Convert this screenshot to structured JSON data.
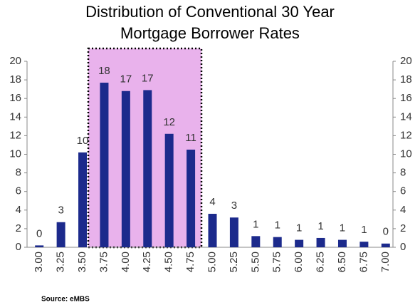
{
  "chart_data": {
    "type": "bar",
    "title": "Distribution of Conventional 30 Year Mortgage Borrower Rates",
    "source": "Source: eMBS",
    "categories": [
      "3.00",
      "3.25",
      "3.50",
      "3.75",
      "4.00",
      "4.25",
      "4.50",
      "4.75",
      "5.00",
      "5.25",
      "5.50",
      "5.75",
      "6.00",
      "6.25",
      "6.50",
      "6.75",
      "7.00"
    ],
    "values": [
      0.2,
      2.7,
      10.2,
      17.7,
      16.8,
      16.9,
      12.2,
      10.5,
      3.6,
      3.2,
      1.2,
      1.1,
      0.8,
      1.0,
      0.8,
      0.6,
      0.4
    ],
    "value_labels": [
      "0",
      "3",
      "10",
      "18",
      "17",
      "17",
      "12",
      "11",
      "4",
      "3",
      "1",
      "1",
      "1",
      "1",
      "1",
      "1",
      "0"
    ],
    "color": "#1c2a8c",
    "ylim": [
      0,
      20
    ],
    "yticks": [
      0,
      2,
      4,
      6,
      8,
      10,
      12,
      14,
      16,
      18,
      20
    ],
    "y2lim": [
      0,
      20
    ],
    "y2ticks": [
      0,
      2,
      4,
      6,
      8,
      10,
      12,
      14,
      16,
      18,
      20
    ],
    "grid": false
  }
}
